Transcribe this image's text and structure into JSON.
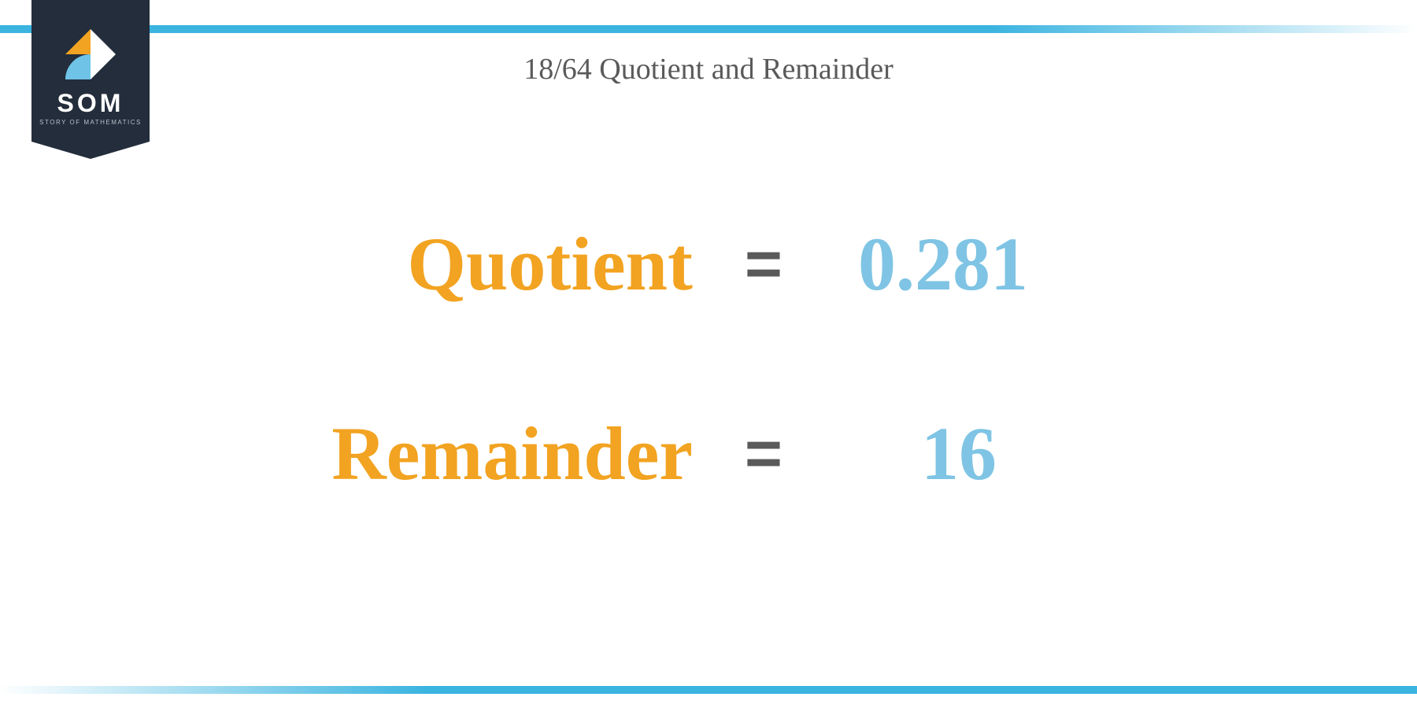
{
  "logo": {
    "name": "SOM",
    "tagline": "STORY OF MATHEMATICS",
    "badge_bg": "#232d3b",
    "icon_colors": {
      "orange": "#f2a321",
      "white": "#ffffff",
      "blue": "#6fc3e6"
    }
  },
  "title": {
    "text": "18/64 Quotient and Remainder",
    "color": "#5a5a5a",
    "fontsize": 38
  },
  "bars": {
    "color": "#3bb4e0",
    "height": 10
  },
  "rows": [
    {
      "label": "Quotient",
      "value": "0.281"
    },
    {
      "label": "Remainder",
      "value": "16"
    }
  ],
  "colors": {
    "label": "#f2a321",
    "equals": "#5a5a5a",
    "value": "#7fc4e4",
    "background": "#ffffff"
  },
  "typography": {
    "label_fontsize": 96,
    "value_fontsize": 96,
    "equals_fontsize": 82,
    "font_family_serif": "Georgia, Times New Roman, serif"
  }
}
